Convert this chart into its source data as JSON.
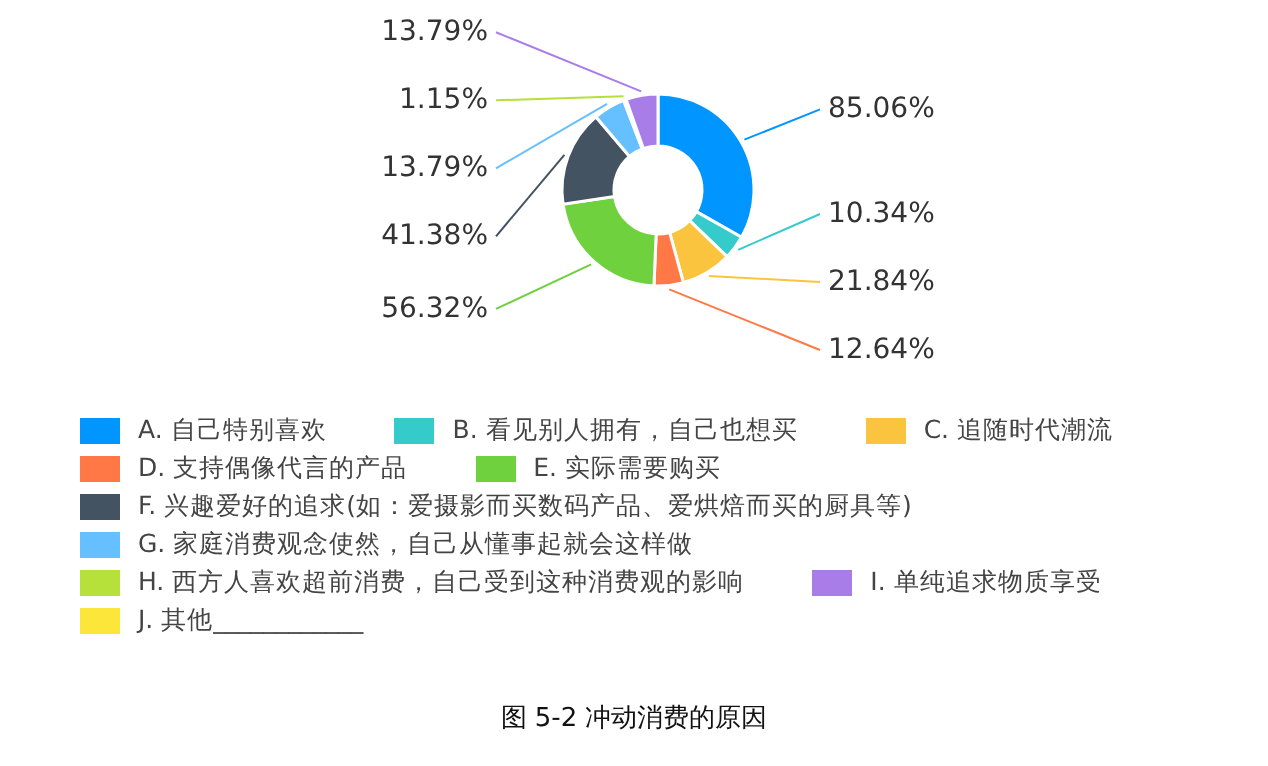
{
  "chart_data": {
    "type": "donut",
    "title": "图 5-2 冲动消费的原因",
    "categories": [
      "A. 自己特别喜欢",
      "B. 看见别人拥有，自己也想买",
      "C. 追随时代潮流",
      "D. 支持偶像代言的产品",
      "E. 实际需要购买",
      "F. 兴趣爱好的追求(如：爱摄影而买数码产品、爱烘焙而买的厨具等)",
      "G. 家庭消费观念使然，自己从懂事起就会这样做",
      "H. 西方人喜欢超前消费，自己受到这种消费观的影响",
      "I. 单纯追求物质享受",
      "J. 其他____________"
    ],
    "values": [
      85.06,
      10.34,
      21.84,
      12.64,
      56.32,
      41.38,
      13.79,
      1.15,
      13.79,
      null
    ],
    "value_labels": [
      "85.06%",
      "10.34%",
      "21.84%",
      "12.64%",
      "56.32%",
      "41.38%",
      "13.79%",
      "1.15%",
      "13.79%",
      null
    ],
    "colors": [
      "#0095ff",
      "#36cbcb",
      "#fbc43e",
      "#ff7845",
      "#6fd13d",
      "#435361",
      "#66bfff",
      "#b6e03a",
      "#a97de8",
      "#fde63a"
    ],
    "legend": "bottom"
  }
}
